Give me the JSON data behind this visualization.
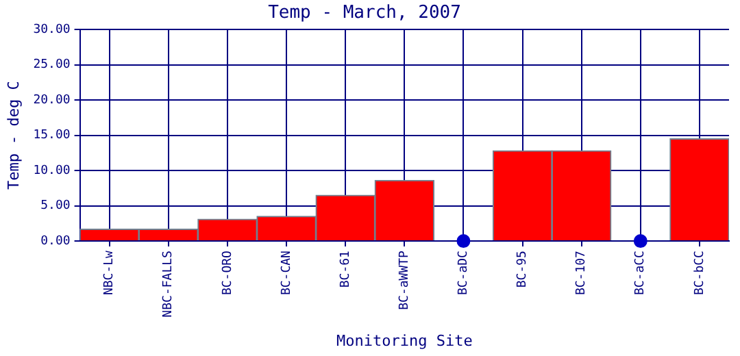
{
  "chart_data": {
    "type": "bar",
    "title": "Temp - March, 2007",
    "xlabel": "Monitoring Site",
    "ylabel": "Temp - deg C",
    "categories": [
      "NBC-Lw",
      "NBC-FALLS",
      "BC-ORO",
      "BC-CAN",
      "BC-61",
      "BC-aWWTP",
      "BC-aDC",
      "BC-95",
      "BC-107",
      "BC-aCC",
      "BC-bCC"
    ],
    "series": [
      {
        "color": "#ff0000",
        "values": [
          1.7,
          1.7,
          3.1,
          3.5,
          6.5,
          8.6,
          null,
          12.8,
          12.8,
          null,
          14.5
        ]
      },
      {
        "type": "scatter",
        "color": "#0000cc",
        "x": [
          "BC-aDC",
          "BC-aCC"
        ],
        "values": [
          0,
          0
        ]
      }
    ],
    "ylim": [
      0,
      30
    ],
    "yticks": [
      {
        "value": 0,
        "label": "0.00"
      },
      {
        "value": 5,
        "label": "5.00"
      },
      {
        "value": 10,
        "label": "10.00"
      },
      {
        "value": 15,
        "label": "15.00"
      },
      {
        "value": 20,
        "label": "20.00"
      },
      {
        "value": 25,
        "label": "25.00"
      },
      {
        "value": 30,
        "label": "30.00"
      }
    ],
    "grid": true,
    "legend": false,
    "marker": "circle"
  }
}
